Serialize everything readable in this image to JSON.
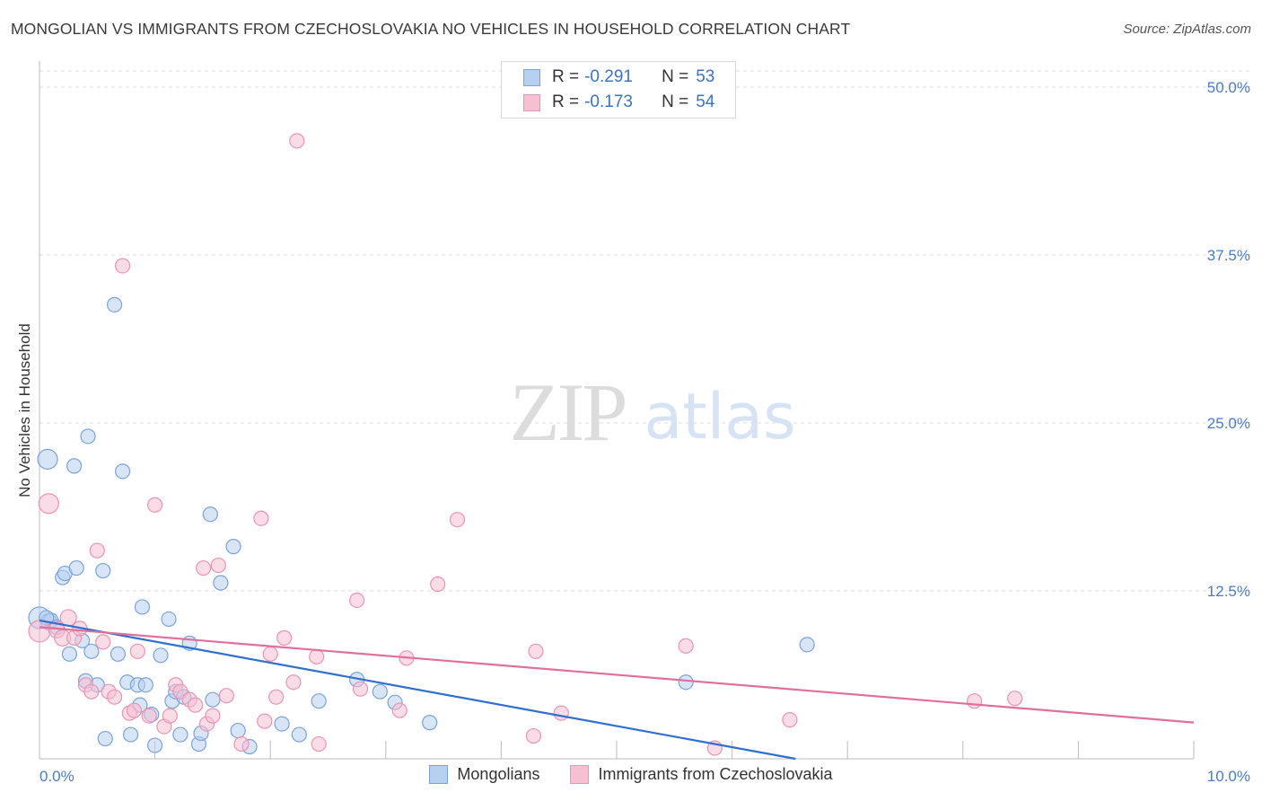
{
  "title": "MONGOLIAN VS IMMIGRANTS FROM CZECHOSLOVAKIA NO VEHICLES IN HOUSEHOLD CORRELATION CHART",
  "source": "Source: ZipAtlas.com",
  "watermark": {
    "zip": "ZIP",
    "atlas": "atlas"
  },
  "colors": {
    "blue_fill": "#b8d0f0",
    "blue_stroke": "#7aa3dc",
    "blue_line": "#2f6fcf",
    "pink_fill": "#f6c0d2",
    "pink_stroke": "#eb94b2",
    "pink_line": "#e0709a",
    "tick_text": "#4a7cc7",
    "grid": "#dddddd"
  },
  "legend": {
    "rows": [
      {
        "r_label": "R = ",
        "r_value": "-0.291",
        "n_label": "N = ",
        "n_value": "53"
      },
      {
        "r_label": "R = ",
        "r_value": "-0.173",
        "n_label": "N = ",
        "n_value": "54"
      }
    ]
  },
  "chart_data": {
    "type": "scatter",
    "title": "MONGOLIAN VS IMMIGRANTS FROM CZECHOSLOVAKIA NO VEHICLES IN HOUSEHOLD CORRELATION CHART",
    "xlabel": "",
    "ylabel": "No Vehicles in Household",
    "xlim": [
      0,
      10
    ],
    "ylim": [
      0,
      50
    ],
    "x_ticks": [
      {
        "value": 0,
        "label": "0.0%"
      },
      {
        "value": 10,
        "label": "10.0%"
      }
    ],
    "y_ticks": [
      {
        "value": 12.5,
        "label": "12.5%"
      },
      {
        "value": 25,
        "label": "25.0%"
      },
      {
        "value": 37.5,
        "label": "37.5%"
      },
      {
        "value": 50,
        "label": "50.0%"
      }
    ],
    "grid": true,
    "legend_position": "top-center",
    "series": [
      {
        "name": "Mongolians",
        "color": "#b8d0f0",
        "trend": {
          "x0": 0,
          "y0": 10.3,
          "x1": 6.55,
          "y1": 0
        },
        "points": [
          [
            0.0,
            10.5,
            12
          ],
          [
            0.07,
            22.3,
            11
          ],
          [
            0.08,
            10.2,
            9
          ],
          [
            0.1,
            10.3,
            8
          ],
          [
            0.15,
            9.8,
            8
          ],
          [
            0.2,
            13.5,
            8
          ],
          [
            0.22,
            13.8,
            8
          ],
          [
            0.26,
            7.8,
            8
          ],
          [
            0.3,
            21.8,
            8
          ],
          [
            0.32,
            14.2,
            8
          ],
          [
            0.37,
            8.8,
            8
          ],
          [
            0.4,
            5.8,
            8
          ],
          [
            0.42,
            24.0,
            8
          ],
          [
            0.45,
            8.0,
            8
          ],
          [
            0.5,
            5.5,
            8
          ],
          [
            0.55,
            14.0,
            8
          ],
          [
            0.57,
            1.5,
            8
          ],
          [
            0.65,
            33.8,
            8
          ],
          [
            0.68,
            7.8,
            8
          ],
          [
            0.72,
            21.4,
            8
          ],
          [
            0.76,
            5.7,
            8
          ],
          [
            0.79,
            1.8,
            8
          ],
          [
            0.85,
            5.5,
            8
          ],
          [
            0.87,
            4.0,
            8
          ],
          [
            0.89,
            11.3,
            8
          ],
          [
            0.92,
            5.5,
            8
          ],
          [
            0.97,
            3.3,
            8
          ],
          [
            1.0,
            1.0,
            8
          ],
          [
            1.05,
            7.7,
            8
          ],
          [
            1.12,
            10.4,
            8
          ],
          [
            1.15,
            4.3,
            8
          ],
          [
            1.18,
            5.0,
            8
          ],
          [
            1.22,
            1.8,
            8
          ],
          [
            1.25,
            4.6,
            8
          ],
          [
            1.3,
            8.6,
            8
          ],
          [
            1.38,
            1.1,
            8
          ],
          [
            1.4,
            1.9,
            8
          ],
          [
            1.48,
            18.2,
            8
          ],
          [
            1.5,
            4.4,
            8
          ],
          [
            1.57,
            13.1,
            8
          ],
          [
            1.68,
            15.8,
            8
          ],
          [
            1.72,
            2.1,
            8
          ],
          [
            1.82,
            0.9,
            8
          ],
          [
            2.1,
            2.6,
            8
          ],
          [
            2.25,
            1.8,
            8
          ],
          [
            2.42,
            4.3,
            8
          ],
          [
            2.75,
            5.9,
            8
          ],
          [
            2.95,
            5.0,
            8
          ],
          [
            3.08,
            4.2,
            8
          ],
          [
            3.38,
            2.7,
            8
          ],
          [
            5.6,
            5.7,
            8
          ],
          [
            6.65,
            8.5,
            8
          ],
          [
            0.06,
            10.5,
            8
          ]
        ]
      },
      {
        "name": "Immigrants from Czechoslovakia",
        "color": "#f6c0d2",
        "trend": {
          "x0": 0,
          "y0": 9.8,
          "x1": 10,
          "y1": 2.7
        },
        "points": [
          [
            0.0,
            9.5,
            12
          ],
          [
            0.08,
            19.0,
            11
          ],
          [
            0.15,
            9.6,
            9
          ],
          [
            0.2,
            9.0,
            9
          ],
          [
            0.25,
            10.5,
            9
          ],
          [
            0.3,
            9.0,
            8
          ],
          [
            0.35,
            9.7,
            8
          ],
          [
            0.4,
            5.5,
            8
          ],
          [
            0.45,
            5.0,
            8
          ],
          [
            0.5,
            15.5,
            8
          ],
          [
            0.55,
            8.7,
            8
          ],
          [
            0.6,
            5.0,
            8
          ],
          [
            0.65,
            4.6,
            8
          ],
          [
            0.72,
            36.7,
            8
          ],
          [
            0.78,
            3.4,
            8
          ],
          [
            0.82,
            3.6,
            8
          ],
          [
            0.85,
            8.0,
            8
          ],
          [
            0.95,
            3.2,
            8
          ],
          [
            1.0,
            18.9,
            8
          ],
          [
            1.08,
            2.4,
            8
          ],
          [
            1.13,
            3.2,
            8
          ],
          [
            1.18,
            5.5,
            8
          ],
          [
            1.22,
            5.0,
            8
          ],
          [
            1.3,
            4.4,
            8
          ],
          [
            1.35,
            4.0,
            8
          ],
          [
            1.42,
            14.2,
            8
          ],
          [
            1.45,
            2.6,
            8
          ],
          [
            1.5,
            3.2,
            8
          ],
          [
            1.55,
            14.4,
            8
          ],
          [
            1.62,
            4.7,
            8
          ],
          [
            1.75,
            1.1,
            8
          ],
          [
            1.92,
            17.9,
            8
          ],
          [
            1.95,
            2.8,
            8
          ],
          [
            2.0,
            7.8,
            8
          ],
          [
            2.05,
            4.6,
            8
          ],
          [
            2.12,
            9.0,
            8
          ],
          [
            2.2,
            5.7,
            8
          ],
          [
            2.23,
            46.0,
            8
          ],
          [
            2.4,
            7.6,
            8
          ],
          [
            2.42,
            1.1,
            8
          ],
          [
            2.75,
            11.8,
            8
          ],
          [
            2.78,
            5.2,
            8
          ],
          [
            3.12,
            3.6,
            8
          ],
          [
            3.18,
            7.5,
            8
          ],
          [
            3.45,
            13.0,
            8
          ],
          [
            3.62,
            17.8,
            8
          ],
          [
            4.28,
            1.7,
            8
          ],
          [
            4.3,
            8.0,
            8
          ],
          [
            4.52,
            3.4,
            8
          ],
          [
            5.6,
            8.4,
            8
          ],
          [
            5.85,
            0.8,
            8
          ],
          [
            6.5,
            2.9,
            8
          ],
          [
            8.1,
            4.3,
            8
          ],
          [
            8.45,
            4.5,
            8
          ]
        ]
      }
    ]
  }
}
